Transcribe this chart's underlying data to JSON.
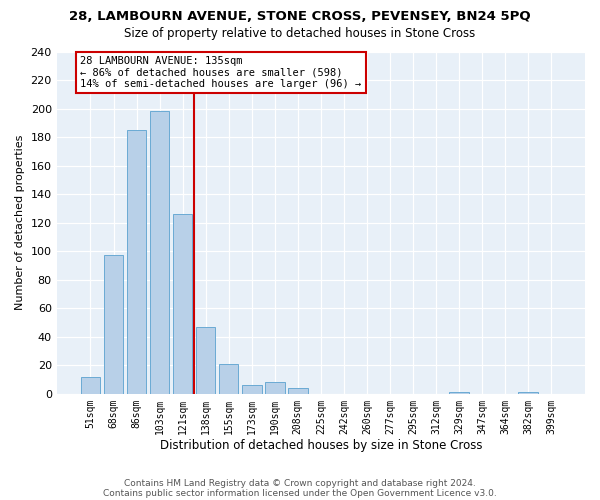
{
  "title": "28, LAMBOURN AVENUE, STONE CROSS, PEVENSEY, BN24 5PQ",
  "subtitle": "Size of property relative to detached houses in Stone Cross",
  "xlabel": "Distribution of detached houses by size in Stone Cross",
  "ylabel": "Number of detached properties",
  "bar_color": "#b8d0e8",
  "bar_edge_color": "#6aaad4",
  "bin_labels": [
    "51sqm",
    "68sqm",
    "86sqm",
    "103sqm",
    "121sqm",
    "138sqm",
    "155sqm",
    "173sqm",
    "190sqm",
    "208sqm",
    "225sqm",
    "242sqm",
    "260sqm",
    "277sqm",
    "295sqm",
    "312sqm",
    "329sqm",
    "347sqm",
    "364sqm",
    "382sqm",
    "399sqm"
  ],
  "bar_values": [
    12,
    97,
    185,
    198,
    126,
    47,
    21,
    6,
    8,
    4,
    0,
    0,
    0,
    0,
    0,
    0,
    1,
    0,
    0,
    1,
    0
  ],
  "vline_color": "#cc0000",
  "annotation_title": "28 LAMBOURN AVENUE: 135sqm",
  "annotation_line1": "← 86% of detached houses are smaller (598)",
  "annotation_line2": "14% of semi-detached houses are larger (96) →",
  "ylim": [
    0,
    240
  ],
  "yticks": [
    0,
    20,
    40,
    60,
    80,
    100,
    120,
    140,
    160,
    180,
    200,
    220,
    240
  ],
  "background_color": "#e8f0f8",
  "footer1": "Contains HM Land Registry data © Crown copyright and database right 2024.",
  "footer2": "Contains public sector information licensed under the Open Government Licence v3.0."
}
